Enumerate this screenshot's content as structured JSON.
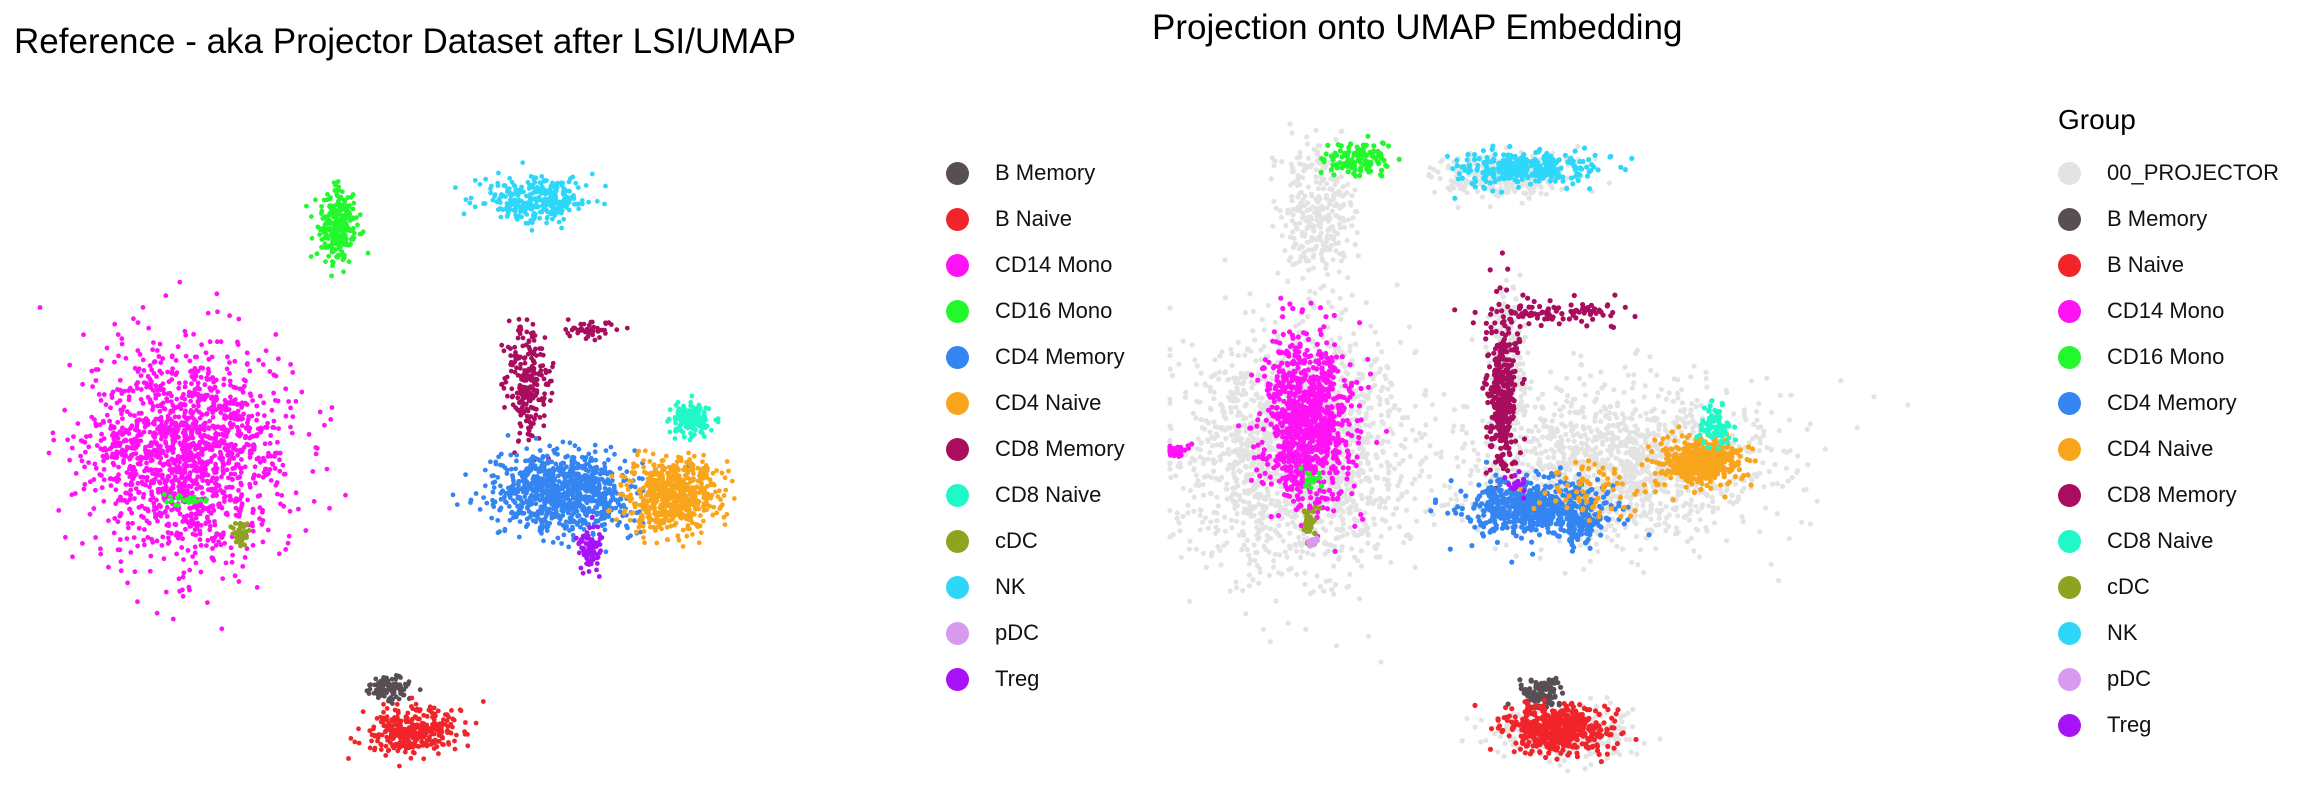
{
  "palette": {
    "00_PROJECTOR": "#e3e3e3",
    "B Memory": "#574f53",
    "B Naive": "#f1242a",
    "CD14 Mono": "#ff12f5",
    "CD16 Mono": "#22f82c",
    "CD4 Memory": "#3485f2",
    "CD4 Naive": "#f9a51c",
    "CD8 Memory": "#a90d5e",
    "CD8 Naive": "#21f8c7",
    "cDC": "#8fa31f",
    "NK": "#2ed7f9",
    "pDC": "#d79aef",
    "Treg": "#a712f7"
  },
  "panels": {
    "left": {
      "title": "Reference - aka Projector Dataset after LSI/UMAP",
      "legend_title": "",
      "legend": [
        "B Memory",
        "B Naive",
        "CD14 Mono",
        "CD16 Mono",
        "CD4 Memory",
        "CD4 Naive",
        "CD8 Memory",
        "CD8 Naive",
        "cDC",
        "NK",
        "pDC",
        "Treg"
      ]
    },
    "right": {
      "title": "Projection onto UMAP Embedding",
      "legend_title": "Group",
      "legend": [
        "00_PROJECTOR",
        "B Memory",
        "B Naive",
        "CD14 Mono",
        "CD16 Mono",
        "CD4 Memory",
        "CD4 Naive",
        "CD8 Memory",
        "CD8 Naive",
        "cDC",
        "NK",
        "pDC",
        "Treg"
      ]
    }
  },
  "chart_data": [
    {
      "type": "scatter",
      "title": "Reference - aka Projector Dataset after LSI/UMAP",
      "xlabel": "",
      "ylabel": "",
      "axes_visible": false,
      "grid": false,
      "legend_position": "right",
      "series": [
        {
          "name": "CD14 Mono",
          "clusters": [
            {
              "cx": 0.17,
              "cy": 0.535,
              "sx": 0.055,
              "sy": 0.075,
              "n": 1500
            },
            {
              "cx": 0.09,
              "cy": 0.525,
              "sx": 0.018,
              "sy": 0.012,
              "n": 60
            }
          ]
        },
        {
          "name": "CD16 Mono",
          "clusters": [
            {
              "cx": 0.338,
              "cy": 0.208,
              "sx": 0.011,
              "sy": 0.028,
              "n": 260
            },
            {
              "cx": 0.165,
              "cy": 0.6,
              "sx": 0.012,
              "sy": 0.005,
              "n": 25
            }
          ]
        },
        {
          "name": "NK",
          "clusters": [
            {
              "cx": 0.563,
              "cy": 0.17,
              "sx": 0.03,
              "sy": 0.016,
              "n": 320
            }
          ]
        },
        {
          "name": "CD8 Memory",
          "clusters": [
            {
              "cx": 0.555,
              "cy": 0.43,
              "sx": 0.012,
              "sy": 0.04,
              "n": 230
            },
            {
              "cx": 0.62,
              "cy": 0.357,
              "sx": 0.015,
              "sy": 0.006,
              "n": 40
            }
          ]
        },
        {
          "name": "CD4 Memory",
          "clusters": [
            {
              "cx": 0.595,
              "cy": 0.59,
              "sx": 0.038,
              "sy": 0.028,
              "n": 950
            }
          ]
        },
        {
          "name": "CD4 Naive",
          "clusters": [
            {
              "cx": 0.72,
              "cy": 0.595,
              "sx": 0.026,
              "sy": 0.024,
              "n": 620
            }
          ]
        },
        {
          "name": "CD8 Naive",
          "clusters": [
            {
              "cx": 0.74,
              "cy": 0.484,
              "sx": 0.012,
              "sy": 0.012,
              "n": 140
            }
          ]
        },
        {
          "name": "Treg",
          "clusters": [
            {
              "cx": 0.625,
              "cy": 0.672,
              "sx": 0.007,
              "sy": 0.014,
              "n": 90
            }
          ]
        },
        {
          "name": "cDC",
          "clusters": [
            {
              "cx": 0.228,
              "cy": 0.645,
              "sx": 0.004,
              "sy": 0.008,
              "n": 40
            }
          ]
        },
        {
          "name": "pDC",
          "clusters": []
        },
        {
          "name": "B Memory",
          "clusters": [
            {
              "cx": 0.395,
              "cy": 0.87,
              "sx": 0.012,
              "sy": 0.01,
              "n": 90
            }
          ]
        },
        {
          "name": "B Naive",
          "clusters": [
            {
              "cx": 0.425,
              "cy": 0.93,
              "sx": 0.025,
              "sy": 0.016,
              "n": 330
            }
          ]
        }
      ]
    },
    {
      "type": "scatter",
      "title": "Projection onto UMAP Embedding",
      "xlabel": "",
      "ylabel": "",
      "axes_visible": false,
      "grid": false,
      "legend_position": "right",
      "series": [
        {
          "name": "00_PROJECTOR",
          "clusters": [
            {
              "cx": 0.145,
              "cy": 0.54,
              "sx": 0.065,
              "sy": 0.085,
              "n": 1700
            },
            {
              "cx": 0.17,
              "cy": 0.2,
              "sx": 0.022,
              "sy": 0.045,
              "n": 300
            },
            {
              "cx": 0.38,
              "cy": 0.15,
              "sx": 0.04,
              "sy": 0.015,
              "n": 300
            },
            {
              "cx": 0.39,
              "cy": 0.42,
              "sx": 0.01,
              "sy": 0.055,
              "n": 200
            },
            {
              "cx": 0.51,
              "cy": 0.56,
              "sx": 0.09,
              "sy": 0.055,
              "n": 1300
            },
            {
              "cx": 0.45,
              "cy": 0.94,
              "sx": 0.04,
              "sy": 0.018,
              "n": 300
            }
          ]
        },
        {
          "name": "CD14 Mono",
          "clusters": [
            {
              "cx": 0.155,
              "cy": 0.5,
              "sx": 0.025,
              "sy": 0.06,
              "n": 1000
            },
            {
              "cx": 0.01,
              "cy": 0.54,
              "sx": 0.01,
              "sy": 0.005,
              "n": 25
            }
          ]
        },
        {
          "name": "CD16 Mono",
          "clusters": [
            {
              "cx": 0.215,
              "cy": 0.125,
              "sx": 0.018,
              "sy": 0.012,
              "n": 120
            },
            {
              "cx": 0.165,
              "cy": 0.58,
              "sx": 0.006,
              "sy": 0.008,
              "n": 20
            }
          ]
        },
        {
          "name": "NK",
          "clusters": [
            {
              "cx": 0.41,
              "cy": 0.14,
              "sx": 0.04,
              "sy": 0.012,
              "n": 330
            }
          ]
        },
        {
          "name": "CD8 Memory",
          "clusters": [
            {
              "cx": 0.382,
              "cy": 0.45,
              "sx": 0.009,
              "sy": 0.06,
              "n": 330
            },
            {
              "cx": 0.44,
              "cy": 0.345,
              "sx": 0.04,
              "sy": 0.008,
              "n": 100
            }
          ]
        },
        {
          "name": "CD4 Memory",
          "clusters": [
            {
              "cx": 0.42,
              "cy": 0.62,
              "sx": 0.04,
              "sy": 0.02,
              "n": 650
            },
            {
              "cx": 0.47,
              "cy": 0.65,
              "sx": 0.012,
              "sy": 0.012,
              "n": 70
            }
          ]
        },
        {
          "name": "CD4 Naive",
          "clusters": [
            {
              "cx": 0.61,
              "cy": 0.555,
              "sx": 0.025,
              "sy": 0.016,
              "n": 450
            },
            {
              "cx": 0.48,
              "cy": 0.6,
              "sx": 0.03,
              "sy": 0.02,
              "n": 70
            }
          ]
        },
        {
          "name": "CD8 Naive",
          "clusters": [
            {
              "cx": 0.625,
              "cy": 0.505,
              "sx": 0.008,
              "sy": 0.015,
              "n": 80
            }
          ]
        },
        {
          "name": "Treg",
          "clusters": [
            {
              "cx": 0.4,
              "cy": 0.59,
              "sx": 0.006,
              "sy": 0.008,
              "n": 15
            }
          ]
        },
        {
          "name": "cDC",
          "clusters": [
            {
              "cx": 0.16,
              "cy": 0.645,
              "sx": 0.004,
              "sy": 0.012,
              "n": 35
            }
          ]
        },
        {
          "name": "pDC",
          "clusters": [
            {
              "cx": 0.165,
              "cy": 0.67,
              "sx": 0.004,
              "sy": 0.003,
              "n": 15
            }
          ]
        },
        {
          "name": "B Memory",
          "clusters": [
            {
              "cx": 0.425,
              "cy": 0.885,
              "sx": 0.012,
              "sy": 0.012,
              "n": 100
            }
          ]
        },
        {
          "name": "B Naive",
          "clusters": [
            {
              "cx": 0.445,
              "cy": 0.935,
              "sx": 0.028,
              "sy": 0.016,
              "n": 480
            }
          ]
        }
      ]
    }
  ]
}
